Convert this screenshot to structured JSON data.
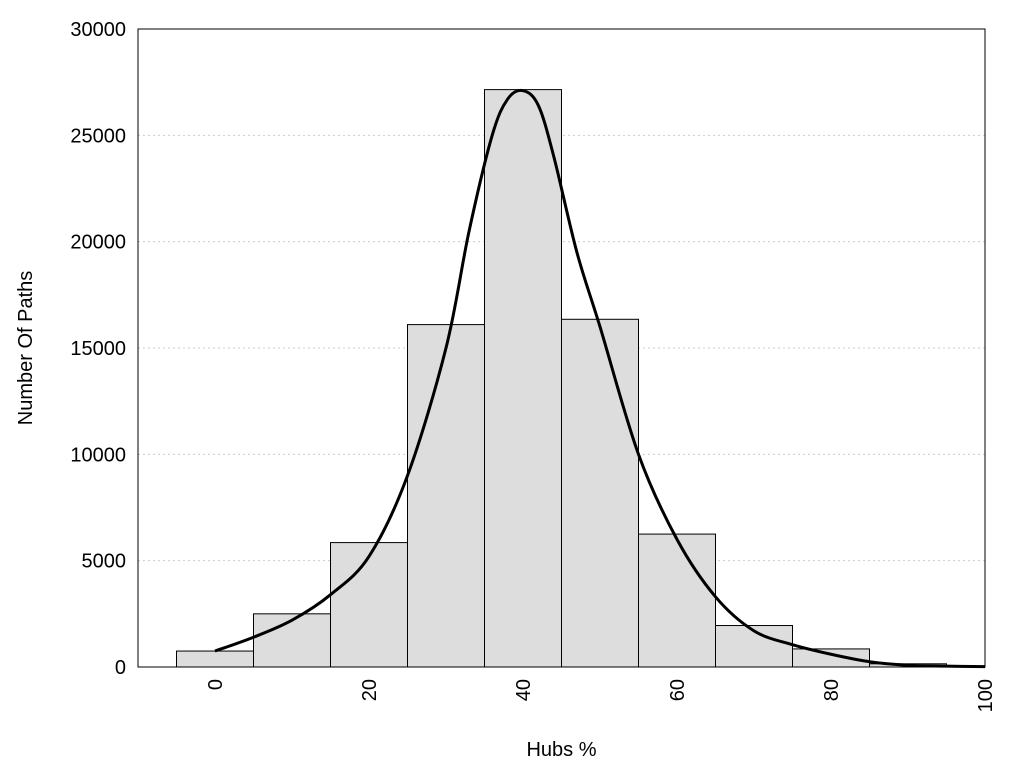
{
  "chart_data": {
    "type": "bar",
    "title": "",
    "xlabel": "Hubs %",
    "ylabel": "Number Of Paths",
    "xlim": [
      -10,
      100
    ],
    "ylim": [
      0,
      30000
    ],
    "x_ticks": [
      0,
      20,
      40,
      60,
      80,
      100
    ],
    "y_ticks": [
      0,
      5000,
      10000,
      15000,
      20000,
      25000,
      30000
    ],
    "grid": "horizontal dotted",
    "bin_width": 10,
    "bins": [
      {
        "x": 0,
        "value": 750
      },
      {
        "x": 10,
        "value": 2500
      },
      {
        "x": 20,
        "value": 5850
      },
      {
        "x": 30,
        "value": 16100
      },
      {
        "x": 40,
        "value": 27150
      },
      {
        "x": 50,
        "value": 16350
      },
      {
        "x": 60,
        "value": 6250
      },
      {
        "x": 70,
        "value": 1950
      },
      {
        "x": 80,
        "value": 850
      },
      {
        "x": 90,
        "value": 150
      }
    ],
    "density_curve": [
      {
        "x": 0,
        "y": 750
      },
      {
        "x": 5,
        "y": 1400
      },
      {
        "x": 10,
        "y": 2200
      },
      {
        "x": 15,
        "y": 3400
      },
      {
        "x": 20,
        "y": 5200
      },
      {
        "x": 25,
        "y": 9000
      },
      {
        "x": 30,
        "y": 15000
      },
      {
        "x": 33,
        "y": 20500
      },
      {
        "x": 36,
        "y": 25000
      },
      {
        "x": 38,
        "y": 26700
      },
      {
        "x": 40,
        "y": 27100
      },
      {
        "x": 42,
        "y": 26400
      },
      {
        "x": 44,
        "y": 24000
      },
      {
        "x": 47,
        "y": 19500
      },
      {
        "x": 50,
        "y": 16000
      },
      {
        "x": 55,
        "y": 10000
      },
      {
        "x": 60,
        "y": 6000
      },
      {
        "x": 65,
        "y": 3300
      },
      {
        "x": 70,
        "y": 1700
      },
      {
        "x": 75,
        "y": 1050
      },
      {
        "x": 80,
        "y": 600
      },
      {
        "x": 85,
        "y": 250
      },
      {
        "x": 90,
        "y": 80
      },
      {
        "x": 95,
        "y": 40
      },
      {
        "x": 100,
        "y": 20
      }
    ],
    "colors": {
      "bar_fill": "#dddddd",
      "bar_stroke": "#000000",
      "curve": "#000000",
      "grid": "#cccccc"
    }
  }
}
